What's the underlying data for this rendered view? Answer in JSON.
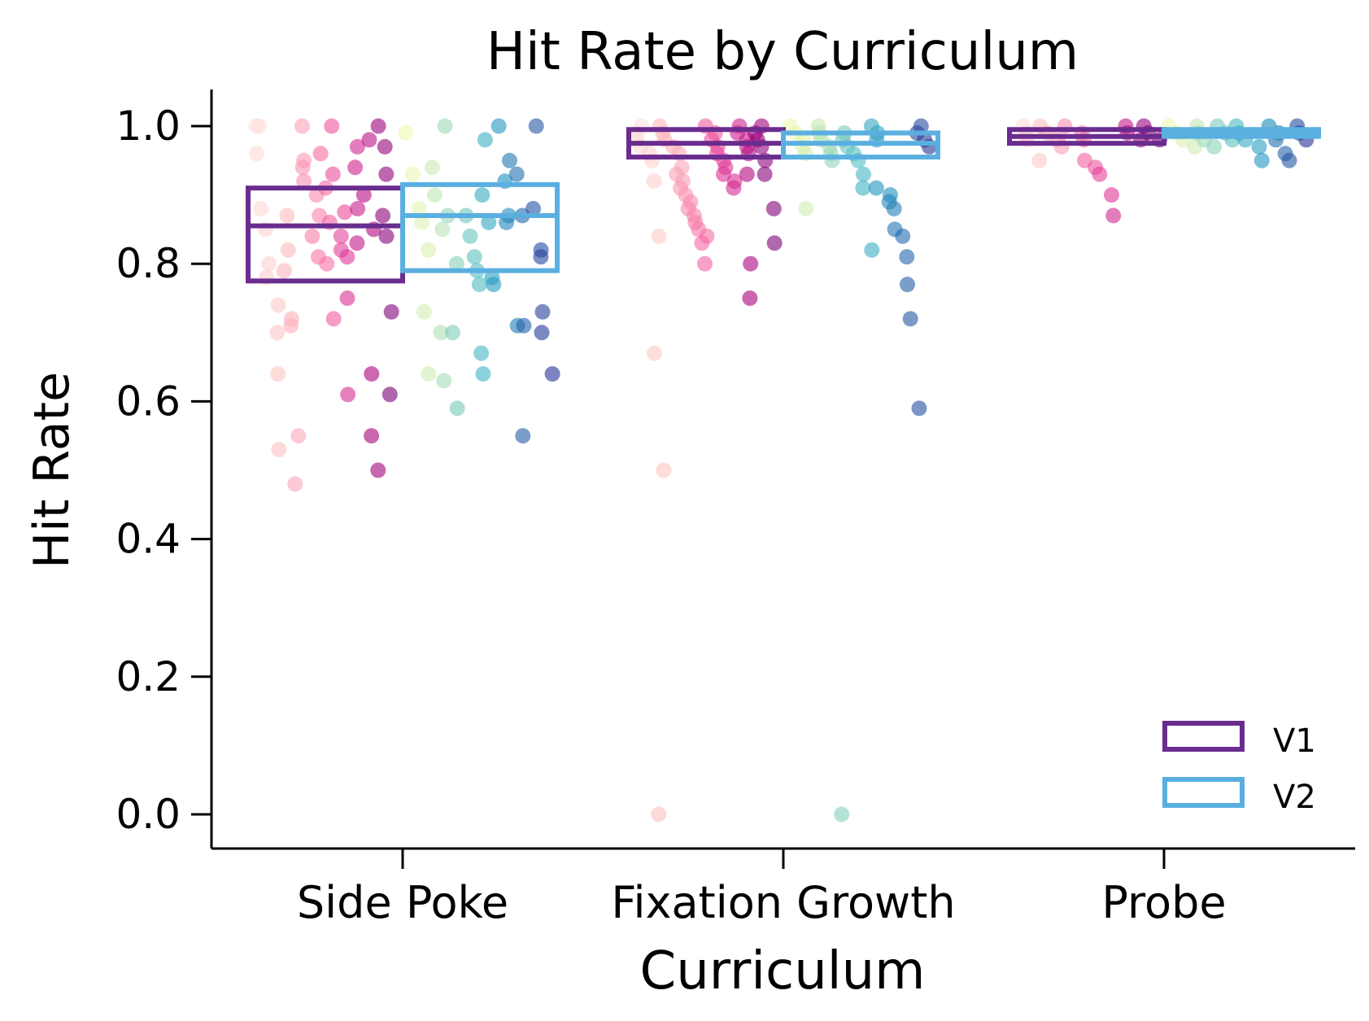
{
  "chart_data": {
    "type": "box-strip",
    "title": "Hit Rate by Curriculum",
    "xlabel": "Curriculum",
    "ylabel": "Hit Rate",
    "categories": [
      "Side Poke",
      "Fixation Growth",
      "Probe"
    ],
    "ylim": [
      -0.05,
      1.05
    ],
    "yticks": [
      0.0,
      0.2,
      0.4,
      0.6,
      0.8,
      1.0
    ],
    "ytick_labels": [
      "0.0",
      "0.2",
      "0.4",
      "0.6",
      "0.8",
      "1.0"
    ],
    "legend_position": "lower-right",
    "grid": false,
    "series": [
      {
        "name": "V1",
        "color": "#6a2c8e",
        "boxes": [
          {
            "category": "Side Poke",
            "q1": 0.775,
            "median": 0.855,
            "q3": 0.91
          },
          {
            "category": "Fixation Growth",
            "q1": 0.955,
            "median": 0.975,
            "q3": 0.995
          },
          {
            "category": "Probe",
            "q1": 0.975,
            "median": 0.985,
            "q3": 0.995
          }
        ]
      },
      {
        "name": "V2",
        "color": "#5aafe0",
        "boxes": [
          {
            "category": "Side Poke",
            "q1": 0.79,
            "median": 0.87,
            "q3": 0.915
          },
          {
            "category": "Fixation Growth",
            "q1": 0.955,
            "median": 0.975,
            "q3": 0.99
          },
          {
            "category": "Probe",
            "q1": 0.985,
            "median": 0.99,
            "q3": 0.995
          }
        ]
      }
    ],
    "points": [
      {
        "category": "Side Poke",
        "series": "V1",
        "palette": "RdPu",
        "values": [
          1.0,
          1.0,
          0.96,
          0.88,
          0.85,
          0.8,
          0.78,
          0.74,
          0.7,
          0.64,
          0.53,
          0.87,
          0.82,
          0.79,
          0.72,
          0.71,
          0.55,
          0.48,
          1.0,
          0.95,
          0.94,
          0.92,
          0.9,
          0.87,
          0.84,
          0.81,
          0.8,
          0.96,
          0.91,
          0.86,
          0.72,
          1.0,
          0.93,
          0.875,
          0.84,
          0.82,
          0.81,
          0.75,
          0.61,
          0.97,
          0.94,
          0.88,
          0.83,
          0.98,
          0.9,
          0.85,
          0.64,
          0.55,
          0.5,
          1.0,
          0.97,
          0.93,
          0.87,
          0.84,
          0.73,
          0.61
        ]
      },
      {
        "category": "Side Poke",
        "series": "V2",
        "palette": "YlGnBu",
        "values": [
          0.99,
          0.93,
          0.88,
          0.86,
          0.82,
          0.73,
          0.64,
          0.94,
          0.9,
          0.85,
          0.7,
          0.63,
          1.0,
          0.87,
          0.8,
          0.7,
          0.59,
          0.87,
          0.84,
          0.81,
          0.79,
          0.77,
          0.67,
          0.64,
          0.98,
          0.9,
          0.86,
          0.78,
          0.77,
          1.0,
          0.92,
          0.87,
          0.86,
          0.71,
          0.95,
          0.93,
          0.87,
          0.71,
          0.55,
          1.0,
          0.88,
          0.82,
          0.81,
          0.73,
          0.7,
          0.64
        ]
      },
      {
        "category": "Fixation Growth",
        "series": "V1",
        "palette": "RdPu",
        "values": [
          1.0,
          0.99,
          0.98,
          0.97,
          0.96,
          0.95,
          0.92,
          0.84,
          0.67,
          0.5,
          0.0,
          1.0,
          0.99,
          0.98,
          0.97,
          0.96,
          0.94,
          0.93,
          0.92,
          0.91,
          0.9,
          0.89,
          0.88,
          0.87,
          0.86,
          0.85,
          0.84,
          0.83,
          0.8,
          1.0,
          0.99,
          0.98,
          0.97,
          0.96,
          0.95,
          0.94,
          0.93,
          0.92,
          0.91,
          1.0,
          0.99,
          0.98,
          0.97,
          0.96,
          0.93,
          0.8,
          0.75,
          1.0,
          0.99,
          0.98,
          0.97,
          0.95,
          0.93,
          0.88,
          0.83
        ]
      },
      {
        "category": "Fixation Growth",
        "series": "V2",
        "palette": "YlGnBu",
        "values": [
          1.0,
          0.99,
          0.98,
          0.97,
          0.96,
          0.88,
          1.0,
          0.99,
          0.98,
          0.97,
          0.96,
          0.95,
          0.0,
          0.99,
          0.98,
          0.97,
          0.96,
          0.95,
          0.93,
          0.91,
          0.82,
          1.0,
          0.99,
          0.98,
          0.91,
          0.9,
          0.89,
          0.88,
          0.85,
          0.84,
          0.81,
          0.77,
          0.72,
          0.59,
          1.0,
          0.99,
          0.98,
          0.97
        ]
      },
      {
        "category": "Probe",
        "series": "V1",
        "palette": "RdPu",
        "values": [
          1.0,
          0.99,
          0.98,
          0.95,
          1.0,
          0.99,
          0.98,
          0.97,
          1.0,
          0.99,
          0.98,
          0.95,
          0.94,
          0.93,
          0.9,
          0.87,
          1.0,
          0.99,
          0.98,
          1.0,
          0.99,
          0.98
        ]
      },
      {
        "category": "Probe",
        "series": "V2",
        "palette": "YlGnBu",
        "values": [
          1.0,
          0.99,
          0.98,
          0.97,
          1.0,
          0.99,
          0.98,
          0.97,
          1.0,
          0.99,
          0.98,
          1.0,
          0.99,
          0.98,
          0.97,
          0.95,
          1.0,
          0.99,
          0.98,
          0.96,
          0.95,
          1.0,
          0.99,
          0.98
        ]
      }
    ]
  }
}
